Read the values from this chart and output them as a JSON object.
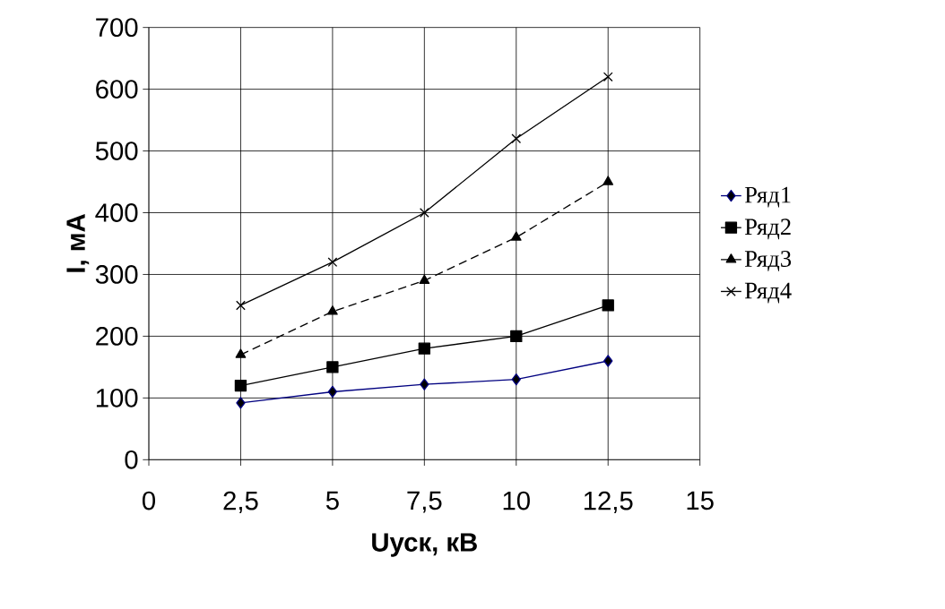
{
  "chart_data": {
    "type": "line",
    "xlabel": "Uуск, кВ",
    "ylabel": "I, мА",
    "x": [
      2.5,
      5,
      7.5,
      10,
      12.5
    ],
    "series": [
      {
        "name": "Ряд1",
        "color": "#000080",
        "marker": "diamond",
        "line_style": "solid",
        "values": [
          92,
          110,
          122,
          130,
          160
        ]
      },
      {
        "name": "Ряд2",
        "color": "#000000",
        "marker": "square",
        "line_style": "solid",
        "values": [
          120,
          150,
          180,
          200,
          250
        ]
      },
      {
        "name": "Ряд3",
        "color": "#000000",
        "marker": "triangle",
        "line_style": "dashed",
        "values": [
          170,
          240,
          290,
          360,
          450
        ]
      },
      {
        "name": "Ряд4",
        "color": "#000000",
        "marker": "cross",
        "line_style": "solid",
        "values": [
          250,
          320,
          400,
          520,
          620
        ]
      }
    ],
    "xlim": [
      0,
      15
    ],
    "ylim": [
      0,
      700
    ],
    "xticks": [
      0,
      {
        "value": 2.5,
        "label": "2,5"
      },
      5,
      {
        "value": 7.5,
        "label": "7,5"
      },
      10,
      {
        "value": 12.5,
        "label": "12,5"
      },
      15
    ],
    "yticks": [
      0,
      100,
      200,
      300,
      400,
      500,
      600,
      700
    ],
    "grid": true,
    "legend": "right"
  }
}
